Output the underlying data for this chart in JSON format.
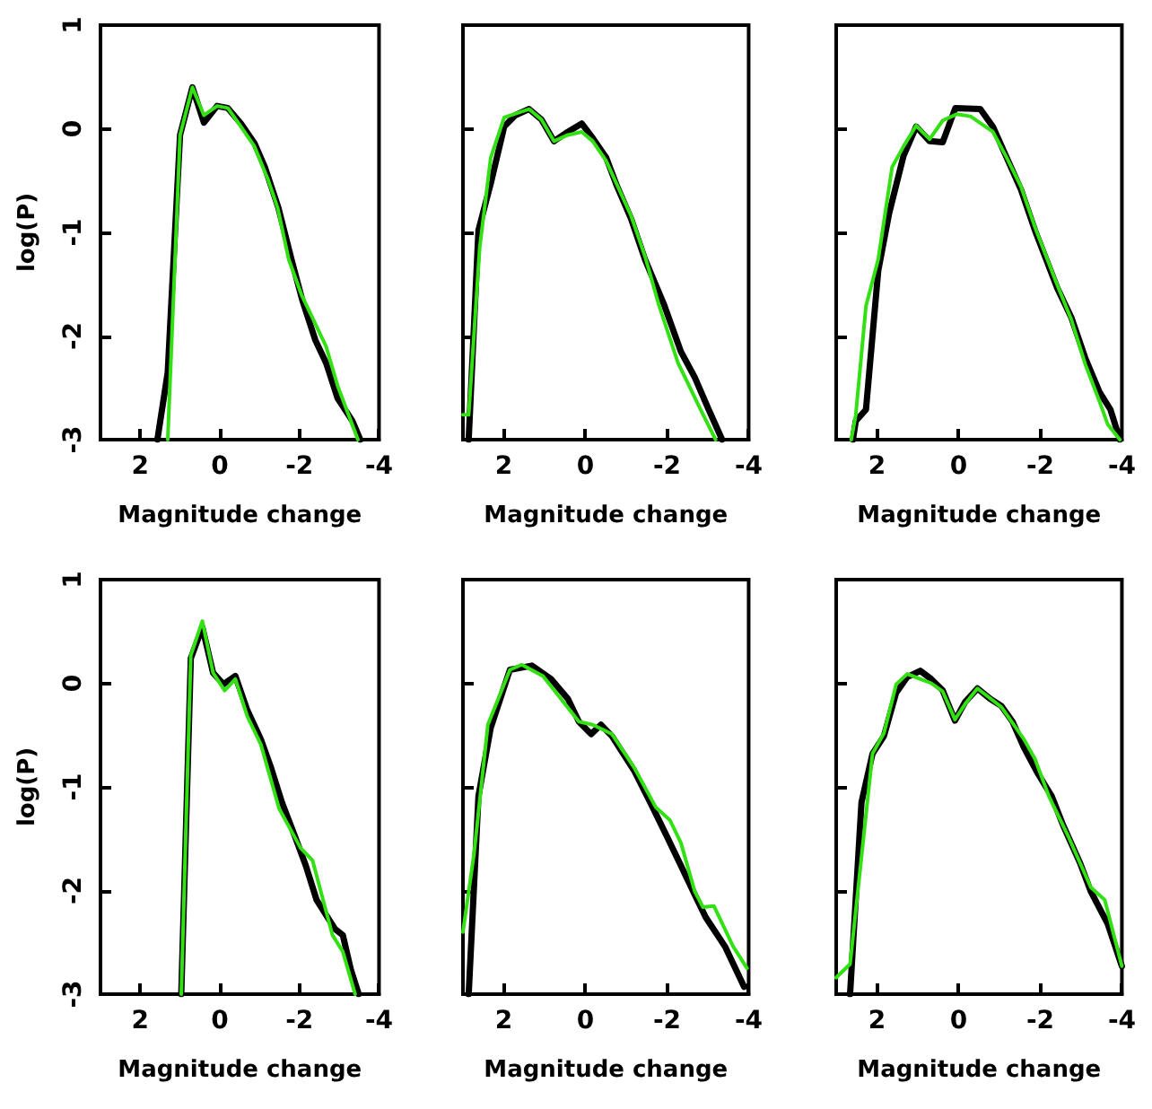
{
  "chart_data": [
    {
      "type": "line",
      "xlabel": "Magnitude change",
      "ylabel": "log(P)",
      "xlim": [
        3,
        -4
      ],
      "xticks": [
        2,
        0,
        -2,
        -4
      ],
      "ylim": [
        -3,
        1
      ],
      "yticks": [
        -3,
        -2,
        -1,
        0,
        1
      ],
      "series": [
        {
          "color": "#000000",
          "x": [
            1.57,
            1.31,
            1.0,
            0.69,
            0.4,
            0.07,
            -0.2,
            -0.53,
            -0.87,
            -1.13,
            -1.47,
            -1.8,
            -2.07,
            -2.4,
            -2.67,
            -2.96,
            -3.33,
            -3.53
          ],
          "values": [
            -3,
            -2.35,
            -0.06,
            0.4,
            0.06,
            0.22,
            0.2,
            0.05,
            -0.14,
            -0.37,
            -0.76,
            -1.26,
            -1.65,
            -2.04,
            -2.26,
            -2.6,
            -2.82,
            -3
          ]
        },
        {
          "color": "#33e014",
          "x": [
            1.31,
            1.0,
            0.69,
            0.4,
            0.07,
            -0.2,
            -0.53,
            -0.87,
            -1.2,
            -1.45,
            -1.73,
            -2.05,
            -2.67,
            -2.96,
            -3.47
          ],
          "values": [
            -3,
            -0.06,
            0.4,
            0.13,
            0.22,
            0.2,
            0.02,
            -0.17,
            -0.48,
            -0.76,
            -1.26,
            -1.6,
            -2.1,
            -2.48,
            -3
          ]
        }
      ]
    },
    {
      "type": "line",
      "xlabel": "Magnitude change",
      "xlim": [
        3,
        -4
      ],
      "xticks": [
        2,
        0,
        -2,
        -4
      ],
      "ylim": [
        -3,
        1
      ],
      "yticks": [
        -3,
        -2,
        -1,
        0,
        1
      ],
      "tick_labels": "x",
      "series": [
        {
          "color": "#000000",
          "x": [
            2.86,
            2.62,
            2.32,
            1.99,
            1.72,
            1.38,
            1.08,
            0.77,
            0.43,
            0.09,
            -0.18,
            -0.51,
            -0.78,
            -1.12,
            -1.46,
            -1.93,
            -2.34,
            -2.68,
            -3.01,
            -3.35
          ],
          "values": [
            -3,
            -0.98,
            -0.53,
            0.02,
            0.13,
            0.19,
            0.09,
            -0.12,
            -0.03,
            0.05,
            -0.09,
            -0.28,
            -0.56,
            -0.87,
            -1.26,
            -1.7,
            -2.15,
            -2.4,
            -2.7,
            -3
          ]
        },
        {
          "color": "#33e014",
          "x": [
            3,
            2.86,
            2.59,
            2.32,
            1.99,
            1.38,
            1.08,
            0.77,
            0.43,
            0.09,
            -0.18,
            -0.51,
            -1.12,
            -1.46,
            -1.8,
            -2.27,
            -2.81,
            -3.19
          ],
          "values": [
            -2.76,
            -2.76,
            -1.15,
            -0.28,
            0.11,
            0.19,
            0.09,
            -0.12,
            -0.06,
            -0.03,
            -0.12,
            -0.31,
            -0.84,
            -1.23,
            -1.7,
            -2.26,
            -2.7,
            -3
          ]
        }
      ]
    },
    {
      "type": "line",
      "xlabel": "Magnitude change",
      "xlim": [
        3,
        -4
      ],
      "xticks": [
        2,
        0,
        -2,
        -4
      ],
      "ylim": [
        -3,
        1
      ],
      "yticks": [
        -3,
        -2,
        -1,
        0,
        1
      ],
      "tick_labels": "x",
      "series": [
        {
          "color": "#000000",
          "x": [
            2.59,
            2.52,
            2.27,
            1.97,
            1.7,
            1.35,
            1.04,
            0.71,
            0.39,
            0.08,
            -0.53,
            -0.84,
            -1.18,
            -1.53,
            -1.87,
            -2.42,
            -2.76,
            -3.1,
            -3.45,
            -3.72,
            -3.95
          ],
          "values": [
            -3,
            -2.82,
            -2.71,
            -1.37,
            -0.81,
            -0.26,
            0.02,
            -0.12,
            -0.13,
            0.2,
            0.19,
            0.02,
            -0.28,
            -0.59,
            -0.98,
            -1.54,
            -1.82,
            -2.21,
            -2.54,
            -2.71,
            -3
          ]
        },
        {
          "color": "#33e014",
          "x": [
            2.63,
            2.52,
            2.27,
            1.97,
            1.63,
            1.35,
            1.04,
            0.71,
            0.39,
            0.05,
            -0.29,
            -0.84,
            -1.18,
            -1.53,
            -1.87,
            -2.42,
            -2.76,
            -3.1,
            -3.45,
            -3.65,
            -3.95
          ],
          "values": [
            -3,
            -2.76,
            -1.71,
            -1.26,
            -0.37,
            -0.17,
            0.03,
            -0.1,
            0.08,
            0.14,
            0.12,
            -0.03,
            -0.28,
            -0.56,
            -0.95,
            -1.51,
            -1.84,
            -2.27,
            -2.63,
            -2.85,
            -3
          ]
        }
      ]
    },
    {
      "type": "line",
      "xlabel": "Magnitude change",
      "ylabel": "log(P)",
      "xlim": [
        3,
        -4
      ],
      "xticks": [
        2,
        0,
        -2,
        -4
      ],
      "ylim": [
        -3,
        1
      ],
      "yticks": [
        -3,
        -2,
        -1,
        0,
        1
      ],
      "series": [
        {
          "color": "#000000",
          "x": [
            0.97,
            0.73,
            0.44,
            0.17,
            -0.09,
            -0.39,
            -0.69,
            -1.03,
            -1.29,
            -1.56,
            -1.89,
            -2.16,
            -2.43,
            -2.89,
            -3.09,
            -3.29,
            -3.49
          ],
          "values": [
            -3,
            0.24,
            0.54,
            0.1,
            -0.01,
            0.07,
            -0.26,
            -0.54,
            -0.82,
            -1.15,
            -1.48,
            -1.76,
            -2.09,
            -2.37,
            -2.43,
            -2.76,
            -3
          ]
        },
        {
          "color": "#33e014",
          "x": [
            0.97,
            0.73,
            0.44,
            0.17,
            -0.12,
            -0.39,
            -0.69,
            -1.03,
            -1.49,
            -2.03,
            -2.33,
            -2.83,
            -3.09,
            -3.4
          ],
          "values": [
            -3,
            0.27,
            0.6,
            0.1,
            -0.07,
            0.04,
            -0.32,
            -0.59,
            -1.21,
            -1.59,
            -1.71,
            -2.43,
            -2.59,
            -3
          ]
        }
      ]
    },
    {
      "type": "line",
      "xlabel": "Magnitude change",
      "xlim": [
        3,
        -4
      ],
      "xticks": [
        2,
        0,
        -2,
        -4
      ],
      "ylim": [
        -3,
        1
      ],
      "yticks": [
        -3,
        -2,
        -1,
        0,
        1
      ],
      "tick_labels": "x",
      "series": [
        {
          "color": "#000000",
          "x": [
            2.86,
            2.62,
            2.32,
            1.85,
            1.31,
            0.84,
            0.43,
            0.16,
            -0.14,
            -0.38,
            -0.65,
            -1.19,
            -1.59,
            -2.0,
            -2.34,
            -2.68,
            -2.95,
            -3.42,
            -3.89
          ],
          "values": [
            -3,
            -1.09,
            -0.43,
            0.13,
            0.17,
            0.04,
            -0.15,
            -0.37,
            -0.49,
            -0.4,
            -0.51,
            -0.84,
            -1.15,
            -1.48,
            -1.76,
            -2.04,
            -2.26,
            -2.54,
            -2.93
          ]
        },
        {
          "color": "#33e014",
          "x": [
            3,
            2.73,
            2.39,
            1.85,
            1.56,
            1.04,
            0.16,
            -0.18,
            -0.65,
            -1.19,
            -1.73,
            -2.07,
            -2.34,
            -2.68,
            -2.88,
            -3.15,
            -3.62,
            -3.96
          ],
          "values": [
            -2.4,
            -1.65,
            -0.4,
            0.13,
            0.18,
            0.07,
            -0.37,
            -0.4,
            -0.49,
            -0.81,
            -1.2,
            -1.32,
            -1.54,
            -2.01,
            -2.16,
            -2.15,
            -2.54,
            -2.75
          ]
        }
      ]
    },
    {
      "type": "line",
      "xlabel": "Magnitude change",
      "xlim": [
        3,
        -4
      ],
      "xticks": [
        2,
        0,
        -2,
        -4
      ],
      "ylim": [
        -3,
        1
      ],
      "yticks": [
        -3,
        -2,
        -1,
        0,
        1
      ],
      "tick_labels": "x",
      "series": [
        {
          "color": "#000000",
          "x": [
            2.66,
            2.38,
            2.11,
            1.83,
            1.53,
            1.26,
            0.94,
            0.67,
            0.39,
            0.09,
            -0.16,
            -0.46,
            -0.77,
            -1.05,
            -1.32,
            -1.6,
            -1.94,
            -2.28,
            -2.56,
            -2.97,
            -3.24,
            -3.65,
            -4.0
          ],
          "values": [
            -3,
            -1.15,
            -0.68,
            -0.51,
            -0.09,
            0.06,
            0.12,
            0.04,
            -0.07,
            -0.36,
            -0.18,
            -0.05,
            -0.15,
            -0.22,
            -0.37,
            -0.62,
            -0.87,
            -1.09,
            -1.37,
            -1.73,
            -2.01,
            -2.32,
            -2.73
          ]
        },
        {
          "color": "#33e014",
          "x": [
            3,
            2.66,
            2.11,
            1.83,
            1.53,
            1.26,
            0.67,
            0.39,
            0.09,
            -0.16,
            -0.46,
            -1.05,
            -1.6,
            -1.87,
            -2.21,
            -2.69,
            -3.24,
            -3.58,
            -4.0
          ],
          "values": [
            -2.84,
            -2.71,
            -0.68,
            -0.48,
            -0.01,
            0.09,
            0,
            -0.08,
            -0.35,
            -0.2,
            -0.05,
            -0.23,
            -0.54,
            -0.73,
            -1.09,
            -1.48,
            -1.97,
            -2.09,
            -2.73
          ]
        }
      ]
    }
  ]
}
